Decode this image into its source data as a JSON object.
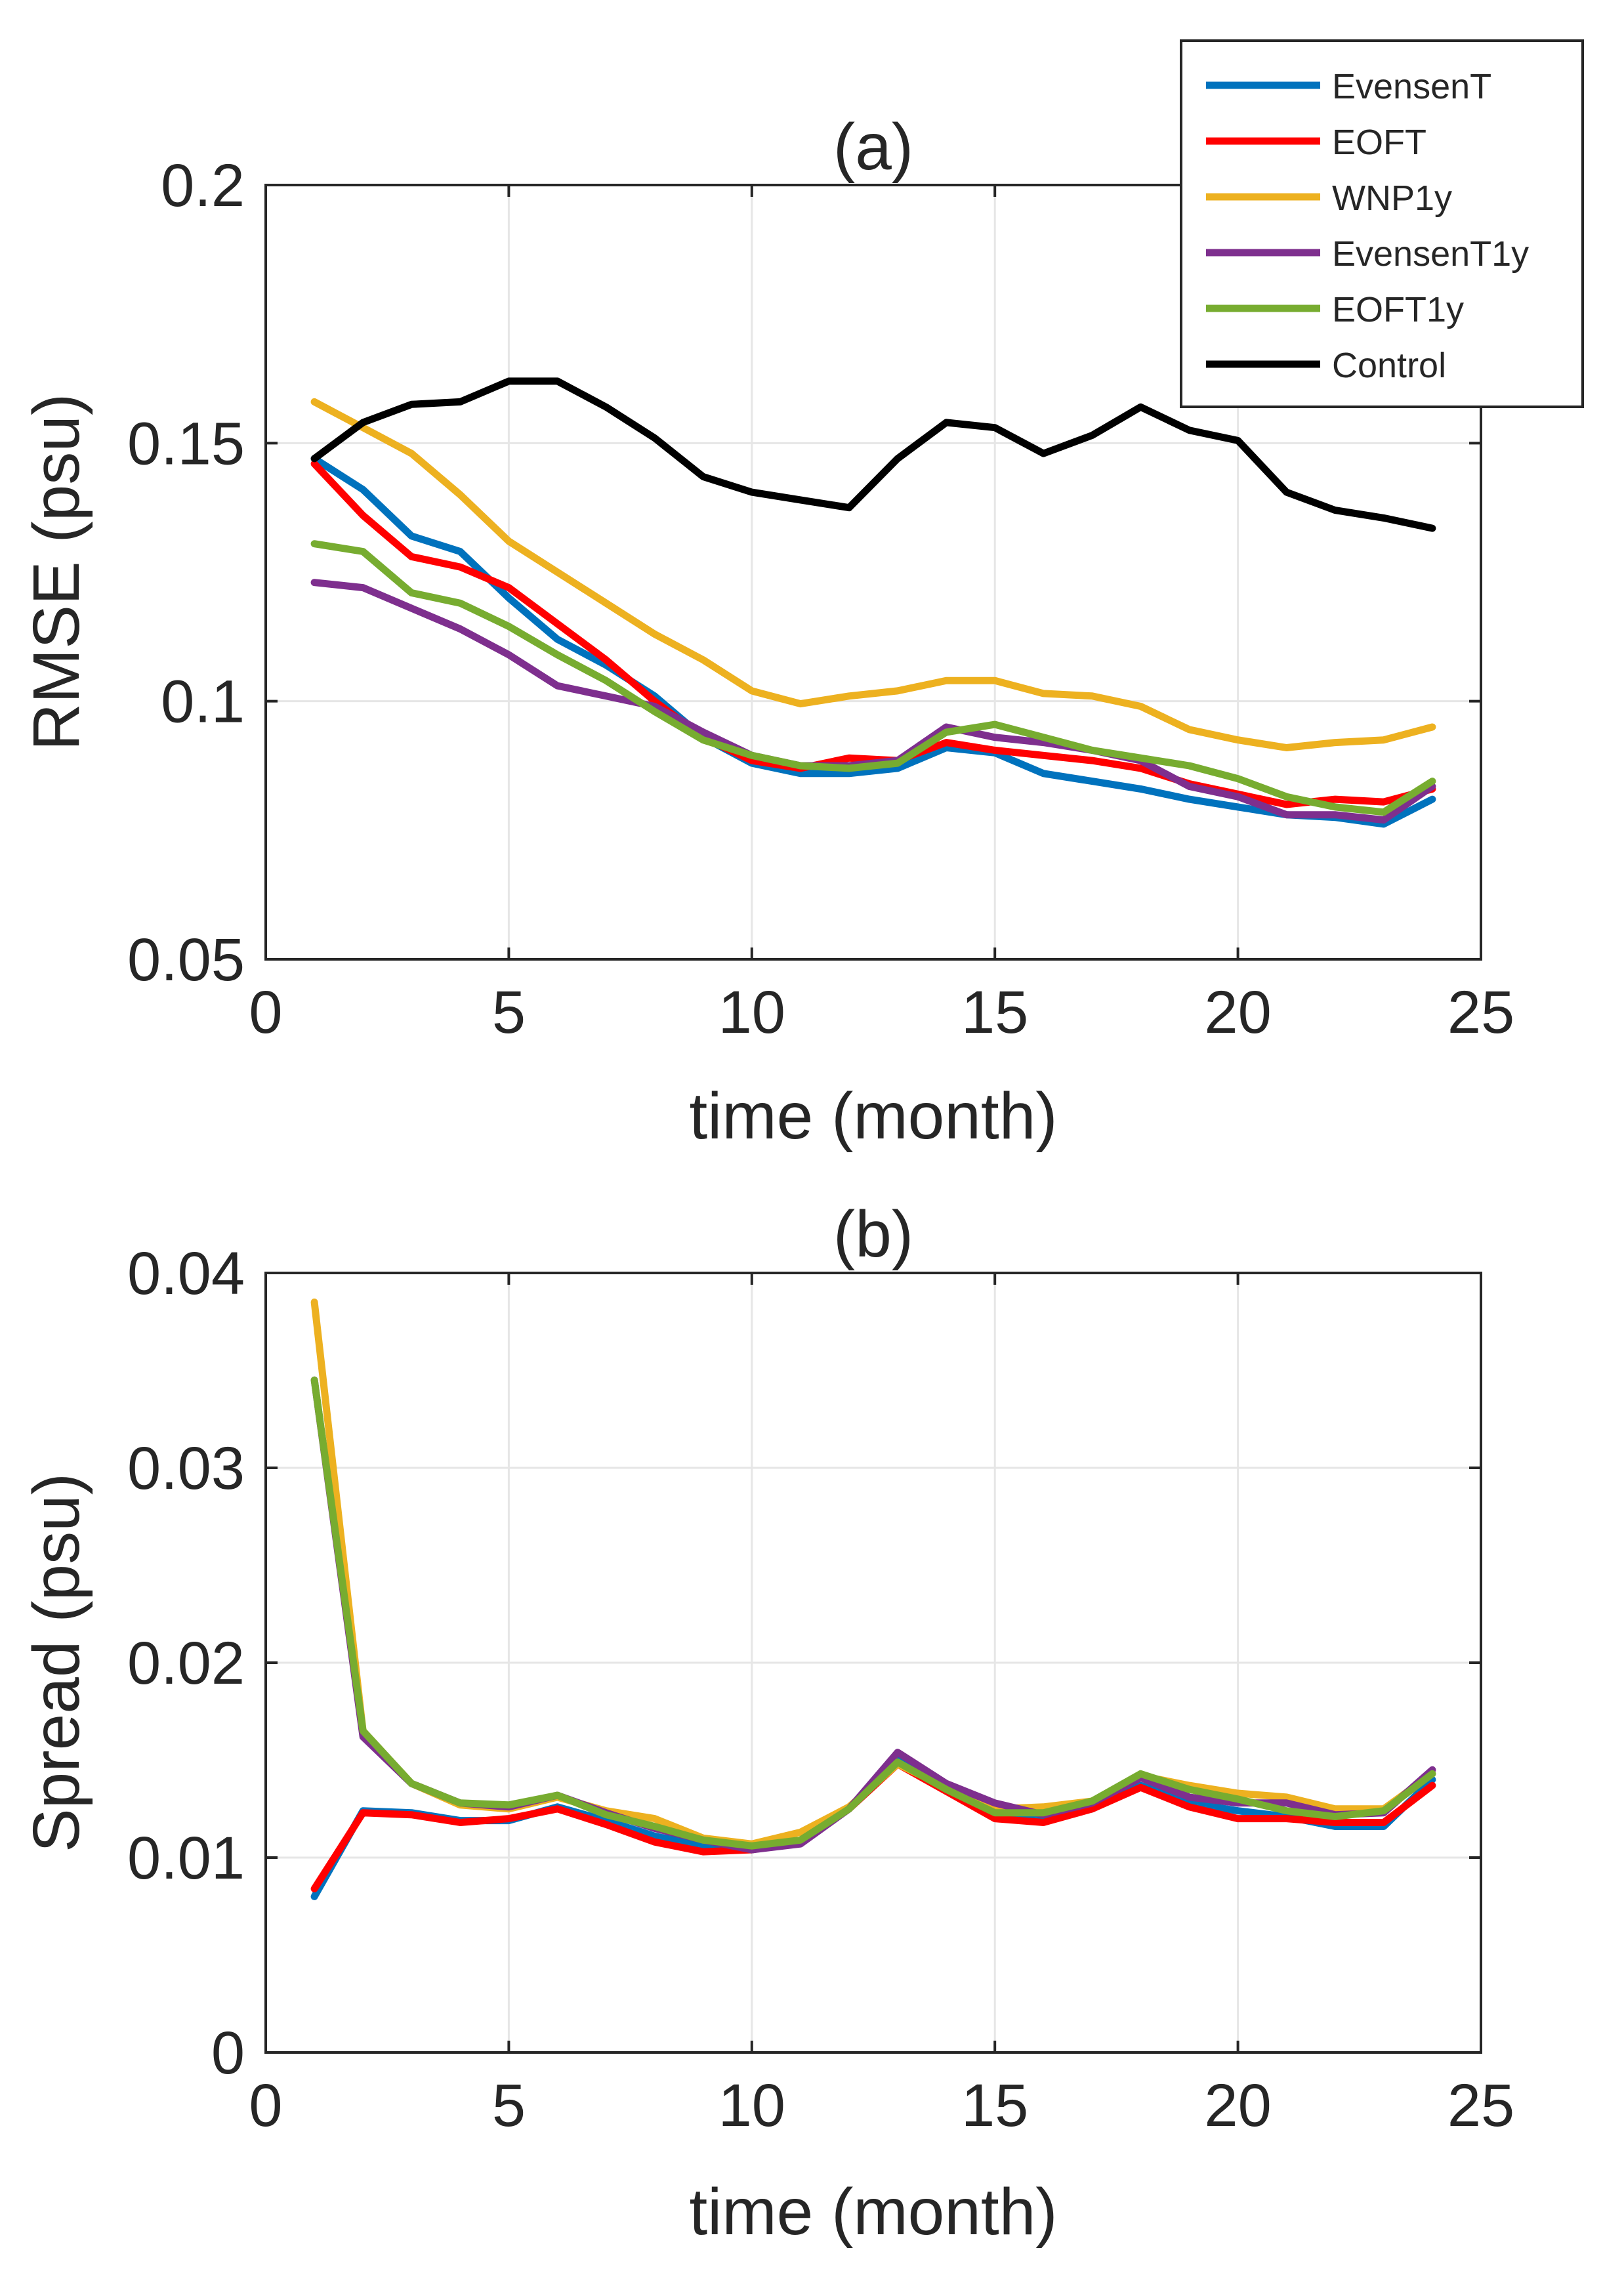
{
  "chart_data": [
    {
      "type": "line",
      "title": "(a)",
      "xlabel": "time (month)",
      "ylabel": "RMSE (psu)",
      "xlim": [
        0,
        25
      ],
      "ylim": [
        0.05,
        0.2
      ],
      "xticks": [
        0,
        5,
        10,
        15,
        20,
        25
      ],
      "yticks": [
        0.05,
        0.1,
        0.15,
        0.2
      ],
      "xtick_labels": [
        "0",
        "5",
        "10",
        "15",
        "20",
        "25"
      ],
      "ytick_labels": [
        "0.05",
        "0.1",
        "0.15",
        "0.2"
      ],
      "grid": true,
      "legend_position": "top-right",
      "x": [
        1,
        2,
        3,
        4,
        5,
        6,
        7,
        8,
        9,
        10,
        11,
        12,
        13,
        14,
        15,
        16,
        17,
        18,
        19,
        20,
        21,
        22,
        23,
        24
      ],
      "series": [
        {
          "name": "EvensenT",
          "color": "#0072BD",
          "values": [
            0.147,
            0.141,
            0.132,
            0.129,
            0.12,
            0.112,
            0.107,
            0.101,
            0.093,
            0.088,
            0.086,
            0.086,
            0.087,
            0.091,
            0.09,
            0.086,
            0.0845,
            0.083,
            0.081,
            0.0795,
            0.078,
            0.0775,
            0.0762,
            0.081
          ]
        },
        {
          "name": "EOFT",
          "color": "#FF0000",
          "values": [
            0.146,
            0.136,
            0.128,
            0.126,
            0.122,
            0.115,
            0.108,
            0.1,
            0.093,
            0.0885,
            0.087,
            0.089,
            0.0885,
            0.092,
            0.0905,
            0.0895,
            0.0885,
            0.087,
            0.084,
            0.082,
            0.08,
            0.081,
            0.0805,
            0.083
          ]
        },
        {
          "name": "WNP1y",
          "color": "#EDB120",
          "values": [
            0.158,
            0.153,
            0.148,
            0.14,
            0.131,
            0.125,
            0.119,
            0.113,
            0.108,
            0.102,
            0.0995,
            0.101,
            0.102,
            0.104,
            0.104,
            0.1015,
            0.101,
            0.099,
            0.0945,
            0.0925,
            0.091,
            0.092,
            0.0925,
            0.095
          ]
        },
        {
          "name": "EvensenT1y",
          "color": "#7E2F8E",
          "values": [
            0.123,
            0.122,
            0.118,
            0.114,
            0.109,
            0.103,
            0.101,
            0.099,
            0.094,
            0.0895,
            0.0875,
            0.0875,
            0.0885,
            0.095,
            0.093,
            0.092,
            0.0905,
            0.0885,
            0.0835,
            0.0815,
            0.078,
            0.078,
            0.077,
            0.0835
          ]
        },
        {
          "name": "EOFT1y",
          "color": "#77AC30",
          "values": [
            0.1305,
            0.129,
            0.121,
            0.119,
            0.1145,
            0.109,
            0.104,
            0.098,
            0.0925,
            0.0895,
            0.0875,
            0.087,
            0.088,
            0.094,
            0.0955,
            0.093,
            0.0905,
            0.089,
            0.0875,
            0.085,
            0.0815,
            0.0795,
            0.0785,
            0.0845
          ]
        },
        {
          "name": "Control",
          "color": "#000000",
          "values": [
            0.147,
            0.154,
            0.1575,
            0.158,
            0.162,
            0.162,
            0.157,
            0.151,
            0.1435,
            0.1405,
            0.139,
            0.1375,
            0.147,
            0.154,
            0.153,
            0.148,
            0.1515,
            0.157,
            0.1525,
            0.1505,
            0.1405,
            0.137,
            0.1355,
            0.1335
          ]
        }
      ]
    },
    {
      "type": "line",
      "title": "(b)",
      "xlabel": "time (month)",
      "ylabel": "Spread (psu)",
      "xlim": [
        0,
        25
      ],
      "ylim": [
        0,
        0.04
      ],
      "xticks": [
        0,
        5,
        10,
        15,
        20,
        25
      ],
      "yticks": [
        0,
        0.01,
        0.02,
        0.03,
        0.04
      ],
      "xtick_labels": [
        "0",
        "5",
        "10",
        "15",
        "20",
        "25"
      ],
      "ytick_labels": [
        "0",
        "0.01",
        "0.02",
        "0.03",
        "0.04"
      ],
      "grid": true,
      "x": [
        1,
        2,
        3,
        4,
        5,
        6,
        7,
        8,
        9,
        10,
        11,
        12,
        13,
        14,
        15,
        16,
        17,
        18,
        19,
        20,
        21,
        22,
        23,
        24
      ],
      "series": [
        {
          "name": "EvensenT",
          "color": "#0072BD",
          "values": [
            0.008,
            0.0124,
            0.0123,
            0.0119,
            0.0119,
            0.0126,
            0.0119,
            0.0111,
            0.0106,
            0.0104,
            0.0108,
            0.0125,
            0.015,
            0.0136,
            0.0122,
            0.012,
            0.0125,
            0.0137,
            0.0128,
            0.0124,
            0.0121,
            0.0116,
            0.0116,
            0.014
          ]
        },
        {
          "name": "EOFT",
          "color": "#FF0000",
          "values": [
            0.0084,
            0.0123,
            0.0122,
            0.0118,
            0.012,
            0.0125,
            0.0117,
            0.0108,
            0.0103,
            0.0104,
            0.0108,
            0.0125,
            0.0148,
            0.0134,
            0.012,
            0.0118,
            0.0125,
            0.0136,
            0.0126,
            0.012,
            0.012,
            0.0118,
            0.0118,
            0.0137
          ]
        },
        {
          "name": "WNP1y",
          "color": "#EDB120",
          "values": [
            0.0385,
            0.0165,
            0.0138,
            0.0127,
            0.0125,
            0.0131,
            0.0124,
            0.012,
            0.011,
            0.0107,
            0.0113,
            0.0126,
            0.0148,
            0.0136,
            0.0125,
            0.0126,
            0.0129,
            0.0142,
            0.0137,
            0.0133,
            0.0131,
            0.0125,
            0.0125,
            0.0143
          ]
        },
        {
          "name": "EvensenT1y",
          "color": "#7E2F8E",
          "values": [
            0.0345,
            0.0162,
            0.0138,
            0.0128,
            0.0126,
            0.0132,
            0.0123,
            0.0115,
            0.0109,
            0.0104,
            0.0107,
            0.0125,
            0.0154,
            0.0138,
            0.0128,
            0.0122,
            0.0128,
            0.0141,
            0.0131,
            0.0128,
            0.0128,
            0.0122,
            0.0123,
            0.0145
          ]
        },
        {
          "name": "EOFT1y",
          "color": "#77AC30",
          "values": [
            0.0345,
            0.0165,
            0.0138,
            0.0128,
            0.0127,
            0.0132,
            0.0122,
            0.0116,
            0.0109,
            0.0106,
            0.0109,
            0.0125,
            0.0149,
            0.0135,
            0.0123,
            0.0123,
            0.0129,
            0.0143,
            0.0135,
            0.013,
            0.0124,
            0.0121,
            0.0124,
            0.0143
          ]
        }
      ]
    }
  ]
}
